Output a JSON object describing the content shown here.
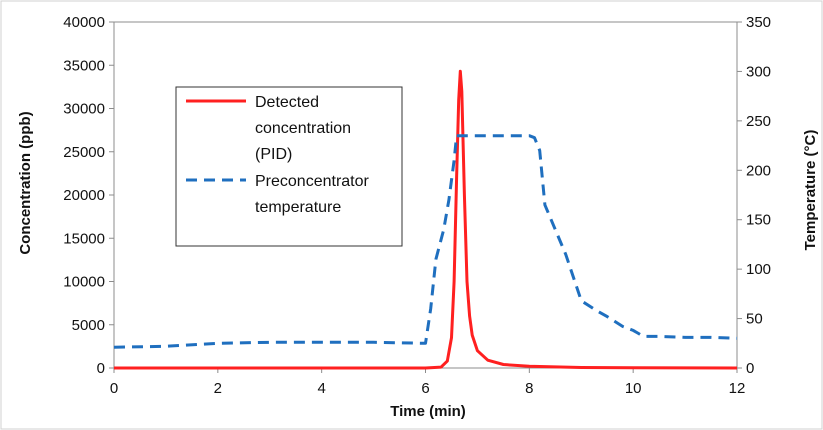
{
  "chart_data": {
    "type": "line",
    "xlabel": "Time (min)",
    "ylabel_left": "Concentration (ppb)",
    "ylabel_right": "Temperature  (°C)",
    "xlim": [
      0,
      12
    ],
    "ylim_left": [
      0,
      40000
    ],
    "ylim_right": [
      0,
      350
    ],
    "x_ticks": [
      "0",
      "2",
      "4",
      "6",
      "8",
      "10",
      "12"
    ],
    "y_left_ticks": [
      "0",
      "5000",
      "10000",
      "15000",
      "20000",
      "25000",
      "30000",
      "35000",
      "40000"
    ],
    "y_right_ticks": [
      "0",
      "50",
      "100",
      "150",
      "200",
      "250",
      "300",
      "350"
    ],
    "grid": false,
    "legend_position": "upper-left",
    "series": [
      {
        "name": "Detected concentration (PID)",
        "axis": "left",
        "color": "#ff2020",
        "style": "solid",
        "x": [
          0,
          6.0,
          6.3,
          6.42,
          6.5,
          6.55,
          6.6,
          6.64,
          6.67,
          6.7,
          6.75,
          6.8,
          6.85,
          6.9,
          7.0,
          7.2,
          7.5,
          8.0,
          9.0,
          10.0,
          12.0
        ],
        "y": [
          0,
          0,
          100,
          800,
          3500,
          10000,
          22000,
          31000,
          34300,
          32000,
          20000,
          10000,
          6000,
          3800,
          2000,
          900,
          400,
          200,
          60,
          20,
          0
        ]
      },
      {
        "name": "Preconcentrator temperature",
        "axis": "right",
        "color": "#1f6fbf",
        "style": "dashed",
        "x": [
          0,
          1,
          2,
          3,
          4,
          5,
          6.0,
          6.1,
          6.2,
          6.35,
          6.45,
          6.55,
          6.6,
          6.7,
          7.0,
          7.5,
          8.0,
          8.1,
          8.2,
          8.3,
          8.5,
          8.7,
          9.0,
          9.3,
          9.5,
          9.8,
          10.0,
          10.2,
          10.5,
          11.0,
          11.5,
          12.0
        ],
        "y": [
          21,
          22,
          25,
          26,
          26,
          26,
          25,
          60,
          110,
          140,
          170,
          210,
          235,
          235,
          235,
          235,
          235,
          233,
          220,
          165,
          140,
          115,
          68,
          58,
          52,
          42,
          38,
          32,
          32,
          31,
          31,
          30
        ]
      }
    ]
  }
}
